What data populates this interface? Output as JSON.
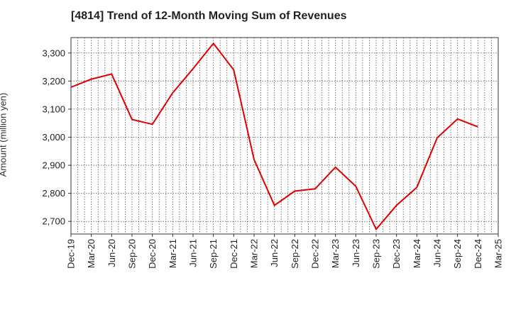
{
  "chart_data": {
    "type": "line",
    "title": "[4814]  Trend of 12-Month Moving Sum of Revenues",
    "ylabel": "Amount (million yen)",
    "xlabel": "",
    "ylim": [
      2655,
      3355
    ],
    "yticks": [
      2700,
      2800,
      2900,
      3000,
      3100,
      3200,
      3300
    ],
    "ytick_labels": [
      "2,700",
      "2,800",
      "2,900",
      "3,000",
      "3,100",
      "3,200",
      "3,300"
    ],
    "categories": [
      "Dec-19",
      "Mar-20",
      "Jun-20",
      "Sep-20",
      "Dec-20",
      "Mar-21",
      "Jun-21",
      "Sep-21",
      "Dec-21",
      "Mar-22",
      "Jun-22",
      "Sep-22",
      "Dec-22",
      "Mar-23",
      "Jun-23",
      "Sep-23",
      "Dec-23",
      "Mar-24",
      "Jun-24",
      "Sep-24",
      "Dec-24",
      "Mar-25"
    ],
    "series": [
      {
        "color": "#e00000",
        "values": [
          3178,
          3207,
          3225,
          3063,
          3046,
          3158,
          3244,
          3334,
          3240,
          2920,
          2757,
          2808,
          2816,
          2893,
          2825,
          2672,
          2757,
          2821,
          2998,
          3065,
          3037,
          null
        ]
      }
    ],
    "grid": true,
    "legend": "none"
  }
}
